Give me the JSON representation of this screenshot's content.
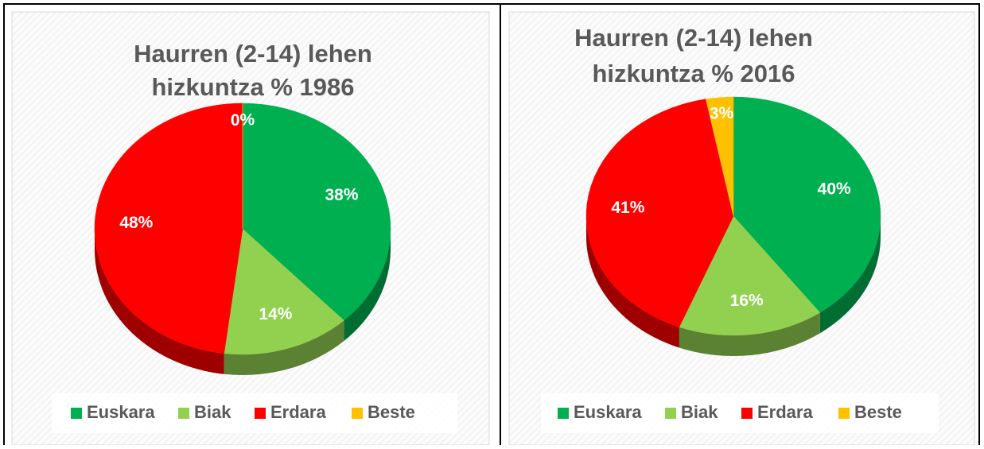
{
  "chart_data": [
    {
      "type": "pie",
      "title": [
        "Haurren (2-14) lehen",
        "hizkuntza % 1986"
      ],
      "categories": [
        "Euskara",
        "Biak",
        "Erdara",
        "Beste"
      ],
      "values": [
        38,
        14,
        48,
        0
      ],
      "colors": [
        "#00b050",
        "#92d050",
        "#ff0000",
        "#ffc000"
      ],
      "legend": "bottom"
    },
    {
      "type": "pie",
      "title": [
        "Haurren (2-14) lehen",
        "hizkuntza % 2016"
      ],
      "categories": [
        "Euskara",
        "Biak",
        "Erdara",
        "Beste"
      ],
      "values": [
        40,
        16,
        41,
        3
      ],
      "colors": [
        "#00b050",
        "#92d050",
        "#ff0000",
        "#ffc000"
      ],
      "legend": "bottom"
    }
  ]
}
